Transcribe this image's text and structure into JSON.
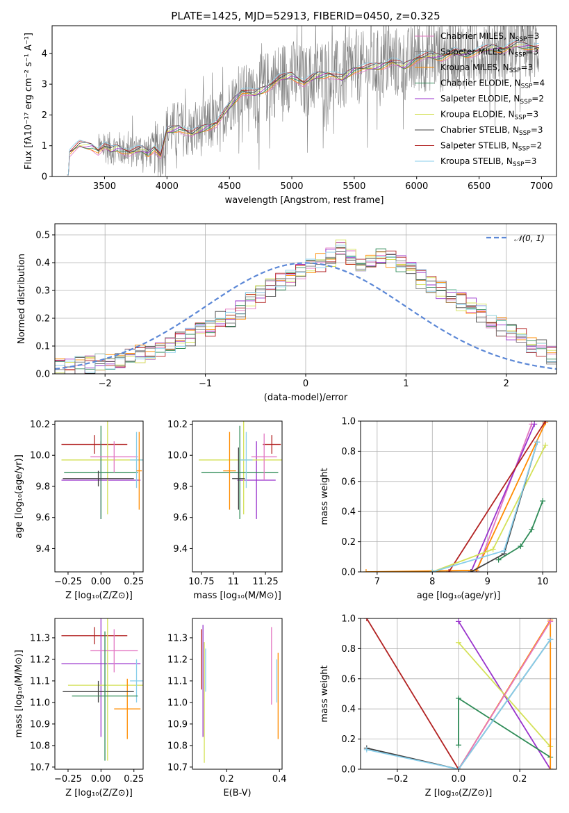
{
  "figure": {
    "title": "PLATE=1425, MJD=52913, FIBERID=0450, z=0.325",
    "colors": {
      "chabrier_miles": "#e377c2",
      "salpeter_miles": "#7f7f7f",
      "kroupa_miles": "#ff8c00",
      "chabrier_elodie": "#2e8b57",
      "salpeter_elodie": "#9932cc",
      "kroupa_elodie": "#d4e157",
      "chabrier_stelib": "#404040",
      "salpeter_stelib": "#b22222",
      "kroupa_stelib": "#87ceeb"
    }
  },
  "chart_data": [
    {
      "id": "spectrum",
      "type": "line",
      "title": "PLATE=1425, MJD=52913, FIBERID=0450, z=0.325",
      "xlabel": "wavelength [Angstrom, rest frame]",
      "ylabel": "Flux [fλ10⁻¹⁷ erg cm⁻² s⁻¹ A⁻¹]",
      "xlim": [
        3080,
        7120
      ],
      "ylim": [
        0,
        4.9
      ],
      "xticks": [
        3500,
        4000,
        4500,
        5000,
        5500,
        6000,
        6500,
        7000
      ],
      "yticks": [
        0,
        1,
        2,
        3,
        4
      ],
      "legend_position": "top-right",
      "legend": [
        {
          "name": "Chabrier MILES, N",
          "sub": "SSP",
          "suffix": "=3",
          "color": "#e377c2"
        },
        {
          "name": "Salpeter MILES, N",
          "sub": "SSP",
          "suffix": "=3",
          "color": "#7f7f7f"
        },
        {
          "name": "Kroupa MILES, N",
          "sub": "SSP",
          "suffix": "=3",
          "color": "#ff8c00"
        },
        {
          "name": "Chabrier ELODIE, N",
          "sub": "SSP",
          "suffix": "=4",
          "color": "#2e8b57"
        },
        {
          "name": "Salpeter ELODIE, N",
          "sub": "SSP",
          "suffix": "=2",
          "color": "#9932cc"
        },
        {
          "name": "Kroupa ELODIE, N",
          "sub": "SSP",
          "suffix": "=3",
          "color": "#d4e157"
        },
        {
          "name": "Chabrier STELIB, N",
          "sub": "SSP",
          "suffix": "=3",
          "color": "#404040"
        },
        {
          "name": "Salpeter STELIB, N",
          "sub": "SSP",
          "suffix": "=2",
          "color": "#b22222"
        },
        {
          "name": "Kroupa STELIB, N",
          "sub": "SSP",
          "suffix": "=3",
          "color": "#87ceeb"
        }
      ],
      "model_curve": {
        "x": [
          3200,
          3220,
          3300,
          3400,
          3450,
          3500,
          3550,
          3600,
          3700,
          3800,
          3850,
          3900,
          3950,
          4000,
          4100,
          4200,
          4300,
          4400,
          4500,
          4600,
          4700,
          4800,
          4900,
          5000,
          5100,
          5200,
          5300,
          5400,
          5500,
          5600,
          5700,
          5800,
          5900,
          6000,
          6100,
          6200,
          6300,
          6400,
          6500,
          6600,
          6700,
          6800,
          6900,
          6980
        ],
        "y": [
          0.05,
          0.8,
          1.05,
          1.0,
          0.85,
          1.0,
          0.88,
          0.95,
          0.8,
          0.9,
          0.78,
          0.95,
          0.7,
          1.5,
          1.6,
          1.4,
          1.6,
          1.75,
          2.3,
          2.8,
          2.7,
          2.9,
          3.2,
          3.3,
          3.05,
          3.3,
          3.35,
          3.2,
          3.5,
          3.55,
          3.6,
          3.75,
          3.6,
          3.85,
          3.95,
          3.9,
          4.05,
          4.0,
          4.1,
          4.2,
          4.15,
          4.3,
          4.25,
          4.2
        ]
      },
      "data_range": [
        3400,
        6980
      ]
    },
    {
      "id": "residuals",
      "type": "histogram",
      "xlabel": "(data-model)/error",
      "ylabel": "Normed distribution",
      "xlim": [
        -2.5,
        2.5
      ],
      "ylim": [
        0,
        0.54
      ],
      "xticks": [
        -2,
        -1,
        0,
        1,
        2
      ],
      "yticks": [
        0,
        0.1,
        0.2,
        0.3,
        0.4,
        0.5
      ],
      "legend_position": "top-right",
      "reference": {
        "label": "𝒩(0, 1)",
        "color": "#5b87d6",
        "mean": 0,
        "sigma": 1
      },
      "bin_width": 0.1,
      "bin_start": -2.5,
      "envelope": [
        0.02,
        0.025,
        0.03,
        0.03,
        0.04,
        0.045,
        0.05,
        0.06,
        0.07,
        0.08,
        0.09,
        0.1,
        0.12,
        0.13,
        0.15,
        0.17,
        0.19,
        0.2,
        0.23,
        0.26,
        0.29,
        0.31,
        0.33,
        0.34,
        0.36,
        0.38,
        0.4,
        0.42,
        0.45,
        0.42,
        0.4,
        0.41,
        0.42,
        0.41,
        0.4,
        0.37,
        0.34,
        0.32,
        0.3,
        0.28,
        0.26,
        0.24,
        0.22,
        0.2,
        0.17,
        0.15,
        0.13,
        0.11,
        0.09,
        0.07
      ]
    },
    {
      "id": "age-vs-Z",
      "type": "errorbar",
      "xlabel": "Z [log₁₀(Z/Z⊙)]",
      "ylabel": "age  [log₁₀(age/yr)]",
      "xlim": [
        -0.35,
        0.32
      ],
      "ylim": [
        9.25,
        10.22
      ],
      "xticks": [
        -0.25,
        0.0,
        0.25
      ],
      "xtick_labels": [
        "−0.25",
        "0.00",
        "0.25"
      ],
      "yticks": [
        9.4,
        9.6,
        9.8,
        10.0,
        10.2
      ],
      "points": [
        {
          "x": -0.05,
          "xerr": 0.25,
          "y": 10.07,
          "yerr": 0.06,
          "color": "#b22222"
        },
        {
          "x": 0.0,
          "xerr": 0.3,
          "y": 9.84,
          "yerr": 0.25,
          "color": "#9932cc"
        },
        {
          "x": 0.05,
          "xerr": 0.35,
          "y": 9.97,
          "yerr": 0.35,
          "color": "#d4e157"
        },
        {
          "x": 0.0,
          "xerr": 0.28,
          "y": 9.89,
          "yerr": 0.3,
          "color": "#2e8b57"
        },
        {
          "x": 0.1,
          "xerr": 0.18,
          "y": 9.99,
          "yerr": 0.1,
          "color": "#e377c2"
        },
        {
          "x": 0.27,
          "xerr": 0.05,
          "y": 9.97,
          "yerr": 0.18,
          "color": "#87ceeb"
        },
        {
          "x": 0.29,
          "xerr": 0.02,
          "y": 9.9,
          "yerr": 0.25,
          "color": "#ff8c00"
        },
        {
          "x": -0.02,
          "xerr": 0.27,
          "y": 9.85,
          "yerr": 0.05,
          "color": "#404040"
        }
      ]
    },
    {
      "id": "age-vs-mass",
      "type": "errorbar",
      "xlabel": "mass [log₁₀(M/M⊙)]",
      "ylabel": "",
      "xlim": [
        10.68,
        11.38
      ],
      "ylim": [
        9.25,
        10.22
      ],
      "xticks": [
        10.75,
        11.0,
        11.25
      ],
      "yticks": [
        9.4,
        9.6,
        9.8,
        10.0,
        10.2
      ],
      "points": [
        {
          "x": 11.3,
          "xerr": 0.07,
          "y": 10.07,
          "yerr": 0.06,
          "color": "#b22222"
        },
        {
          "x": 11.18,
          "xerr": 0.15,
          "y": 9.84,
          "yerr": 0.25,
          "color": "#9932cc"
        },
        {
          "x": 11.08,
          "xerr": 0.35,
          "y": 9.97,
          "yerr": 0.35,
          "color": "#d4e157"
        },
        {
          "x": 11.05,
          "xerr": 0.3,
          "y": 9.89,
          "yerr": 0.3,
          "color": "#2e8b57"
        },
        {
          "x": 11.24,
          "xerr": 0.1,
          "y": 9.99,
          "yerr": 0.15,
          "color": "#e377c2"
        },
        {
          "x": 11.1,
          "xerr": 0.05,
          "y": 9.97,
          "yerr": 0.18,
          "color": "#87ceeb"
        },
        {
          "x": 10.97,
          "xerr": 0.05,
          "y": 9.9,
          "yerr": 0.25,
          "color": "#ff8c00"
        },
        {
          "x": 11.04,
          "xerr": 0.05,
          "y": 9.85,
          "yerr": 0.2,
          "color": "#404040"
        }
      ]
    },
    {
      "id": "massweight-vs-age",
      "type": "line",
      "xlabel": "age  [log₁₀(age/yr)]",
      "ylabel": "mass weight",
      "xlim": [
        6.7,
        10.25
      ],
      "ylim": [
        0,
        1.0
      ],
      "xticks": [
        7,
        8,
        9,
        10
      ],
      "yticks": [
        0.0,
        0.2,
        0.4,
        0.6,
        0.8,
        1.0
      ],
      "series": [
        {
          "color": "#e377c2",
          "x": [
            8.8,
            9.8
          ],
          "y": [
            0.0,
            0.98
          ]
        },
        {
          "color": "#9932cc",
          "x": [
            8.7,
            9.85
          ],
          "y": [
            0.0,
            0.98
          ]
        },
        {
          "color": "#ff8c00",
          "x": [
            6.8,
            8.8,
            10.05
          ],
          "y": [
            0.0,
            0.01,
            0.99
          ]
        },
        {
          "color": "#b22222",
          "x": [
            8.3,
            10.05
          ],
          "y": [
            0.0,
            1.0
          ]
        },
        {
          "color": "#d4e157",
          "x": [
            8.0,
            9.1,
            10.05
          ],
          "y": [
            0.0,
            0.15,
            0.84
          ]
        },
        {
          "color": "#404040",
          "x": [
            8.7,
            9.3,
            9.9
          ],
          "y": [
            0.0,
            0.12,
            0.86
          ]
        },
        {
          "color": "#87ceeb",
          "x": [
            8.0,
            9.3,
            9.9
          ],
          "y": [
            0.0,
            0.14,
            0.86
          ]
        },
        {
          "color": "#2e8b57",
          "x": [
            9.2,
            9.6,
            9.8,
            10.0
          ],
          "y": [
            0.08,
            0.17,
            0.28,
            0.47
          ]
        }
      ]
    },
    {
      "id": "mass-vs-Z",
      "type": "errorbar",
      "xlabel": "Z [log₁₀(Z/Z⊙)]",
      "ylabel": "mass [log₁₀(M/M⊙)]",
      "xlim": [
        -0.35,
        0.32
      ],
      "ylim": [
        10.69,
        11.39
      ],
      "xticks": [
        -0.25,
        0.0,
        0.25
      ],
      "xtick_labels": [
        "−0.25",
        "0.00",
        "0.25"
      ],
      "yticks": [
        10.7,
        10.8,
        10.9,
        11.0,
        11.1,
        11.2,
        11.3
      ],
      "points": [
        {
          "x": -0.05,
          "xerr": 0.25,
          "y": 11.31,
          "yerr": 0.04,
          "color": "#b22222"
        },
        {
          "x": 0.0,
          "xerr": 0.3,
          "y": 11.18,
          "yerr": 0.34,
          "color": "#9932cc"
        },
        {
          "x": 0.05,
          "xerr": 0.3,
          "y": 11.08,
          "yerr": 0.35,
          "color": "#d4e157"
        },
        {
          "x": 0.1,
          "xerr": 0.18,
          "y": 11.24,
          "yerr": 0.1,
          "color": "#e377c2"
        },
        {
          "x": 0.27,
          "xerr": 0.05,
          "y": 11.1,
          "yerr": 0.1,
          "color": "#87ceeb"
        },
        {
          "x": 0.2,
          "xerr": 0.1,
          "y": 10.97,
          "yerr": 0.14,
          "color": "#ff8c00"
        },
        {
          "x": -0.02,
          "xerr": 0.27,
          "y": 11.05,
          "yerr": 0.05,
          "color": "#404040"
        },
        {
          "x": 0.03,
          "xerr": 0.25,
          "y": 11.03,
          "yerr": 0.3,
          "color": "#2e8b57"
        }
      ]
    },
    {
      "id": "mass-vs-EBV",
      "type": "errorbar",
      "xlabel": "E(B-V)",
      "ylabel": "",
      "xlim": [
        0.07,
        0.41
      ],
      "ylim": [
        10.69,
        11.39
      ],
      "xticks": [
        0.2,
        0.4
      ],
      "yticks": [
        10.7,
        10.8,
        10.9,
        11.0,
        11.1,
        11.2,
        11.3
      ],
      "points": [
        {
          "x": 0.105,
          "xerr": 0.0,
          "y": 11.2,
          "yerr": 0.14,
          "color": "#b22222"
        },
        {
          "x": 0.11,
          "xerr": 0.0,
          "y": 11.1,
          "yerr": 0.26,
          "color": "#9932cc"
        },
        {
          "x": 0.115,
          "xerr": 0.0,
          "y": 11.0,
          "yerr": 0.28,
          "color": "#d4e157"
        },
        {
          "x": 0.12,
          "xerr": 0.0,
          "y": 11.15,
          "yerr": 0.1,
          "color": "#87ceeb"
        },
        {
          "x": 0.37,
          "xerr": 0.0,
          "y": 11.17,
          "yerr": 0.18,
          "color": "#e377c2"
        },
        {
          "x": 0.395,
          "xerr": 0.0,
          "y": 11.03,
          "yerr": 0.2,
          "color": "#ff8c00"
        },
        {
          "x": 0.39,
          "xerr": 0.0,
          "y": 11.1,
          "yerr": 0.1,
          "color": "#87ceeb"
        }
      ]
    },
    {
      "id": "massweight-vs-Z",
      "type": "line",
      "xlabel": "Z [log₁₀(Z/Z⊙)]",
      "ylabel": "mass weight",
      "xlim": [
        -0.32,
        0.32
      ],
      "ylim": [
        0,
        1.0
      ],
      "xticks": [
        -0.2,
        0.0,
        0.2
      ],
      "xtick_labels": [
        "−0.2",
        "0.0",
        "0.2"
      ],
      "yticks": [
        0.0,
        0.2,
        0.4,
        0.6,
        0.8,
        1.0
      ],
      "series": [
        {
          "color": "#b22222",
          "x": [
            -0.3,
            0.0
          ],
          "y": [
            1.0,
            0.0
          ]
        },
        {
          "color": "#9932cc",
          "x": [
            0.0,
            0.3
          ],
          "y": [
            0.98,
            0.0
          ]
        },
        {
          "color": "#d4e157",
          "x": [
            0.0,
            0.3
          ],
          "y": [
            0.84,
            0.15
          ]
        },
        {
          "color": "#2e8b57",
          "x": [
            0.0,
            0.0,
            0.3
          ],
          "y": [
            0.16,
            0.47,
            0.08
          ]
        },
        {
          "color": "#ff8c00",
          "x": [
            0.0,
            0.3,
            0.3
          ],
          "y": [
            0.0,
            0.99,
            0.0
          ]
        },
        {
          "color": "#e377c2",
          "x": [
            0.0,
            0.3
          ],
          "y": [
            0.0,
            0.98
          ]
        },
        {
          "color": "#404040",
          "x": [
            -0.3,
            0.0,
            0.3
          ],
          "y": [
            0.14,
            0.0,
            0.86
          ]
        },
        {
          "color": "#87ceeb",
          "x": [
            -0.3,
            0.0,
            0.3
          ],
          "y": [
            0.13,
            0.0,
            0.86
          ]
        }
      ]
    }
  ]
}
